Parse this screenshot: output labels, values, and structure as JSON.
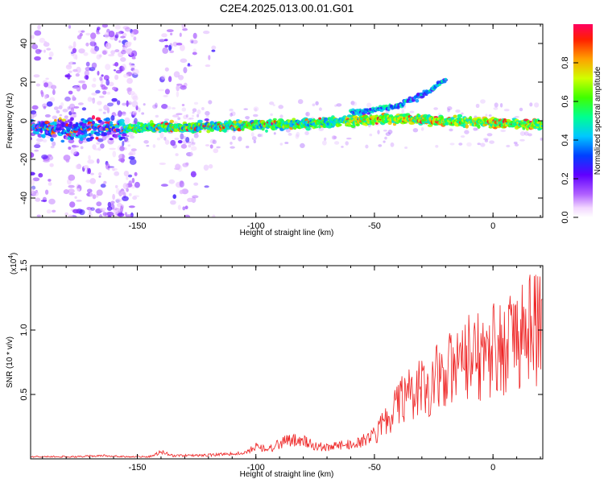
{
  "title": "C2E4.2025.013.00.01.G01",
  "chart_data": [
    {
      "type": "heatmap",
      "xlabel": "Height of straight line (km)",
      "ylabel": "Frequency (Hz)",
      "xlim": [
        -195,
        21
      ],
      "ylim": [
        -50,
        50
      ],
      "xticks": [
        -150,
        -100,
        -50,
        0
      ],
      "yticks": [
        -40,
        -20,
        0,
        20,
        40
      ],
      "grid": false,
      "colorbar": {
        "label": "Normalized spectral amplitude",
        "range": [
          0,
          1
        ],
        "ticks": [
          "0.0",
          "0.2",
          "0.4",
          "0.6",
          "0.8"
        ]
      },
      "features": [
        {
          "name": "main",
          "x": [
            -155,
            -120,
            -90,
            -60,
            -40,
            -20,
            0,
            20
          ],
          "y": [
            -4,
            -3,
            -2,
            0,
            1,
            0,
            -1,
            -2
          ],
          "peak_amplitude": 0.95
        },
        {
          "name": "upper",
          "x": [
            -60,
            -40,
            -30,
            -20
          ],
          "y": [
            4,
            8,
            13,
            21
          ],
          "peak_amplitude": 0.6
        }
      ]
    },
    {
      "type": "line",
      "xlabel": "Height of straight line (km)",
      "ylabel": "SNR (10 * v/v)",
      "multiplier_label": "(x10",
      "multiplier_exp": "4",
      "xlim": [
        -195,
        21
      ],
      "ylim": [
        0,
        1.5
      ],
      "xticks": [
        -150,
        -100,
        -50,
        0
      ],
      "yticks": [
        "0.5",
        "1.0",
        "1.5"
      ],
      "color": "#ee2222",
      "series": [
        {
          "x": [
            -195,
            -185,
            -175,
            -165,
            -155,
            -145,
            -140,
            -135,
            -125,
            -115,
            -105,
            -100,
            -95,
            -90,
            -85,
            -80,
            -75,
            -70,
            -65,
            -60,
            -55,
            -50,
            -45,
            -40,
            -35,
            -30,
            -25,
            -20,
            -15,
            -10,
            -5,
            0,
            5,
            10,
            15,
            20
          ],
          "y": [
            0.02,
            0.02,
            0.02,
            0.03,
            0.02,
            0.02,
            0.06,
            0.03,
            0.03,
            0.04,
            0.05,
            0.12,
            0.08,
            0.14,
            0.18,
            0.16,
            0.12,
            0.1,
            0.12,
            0.14,
            0.16,
            0.24,
            0.34,
            0.5,
            0.62,
            0.7,
            0.74,
            0.8,
            0.9,
            0.95,
            1.0,
            1.05,
            1.1,
            1.15,
            1.22,
            1.25
          ]
        }
      ]
    }
  ]
}
